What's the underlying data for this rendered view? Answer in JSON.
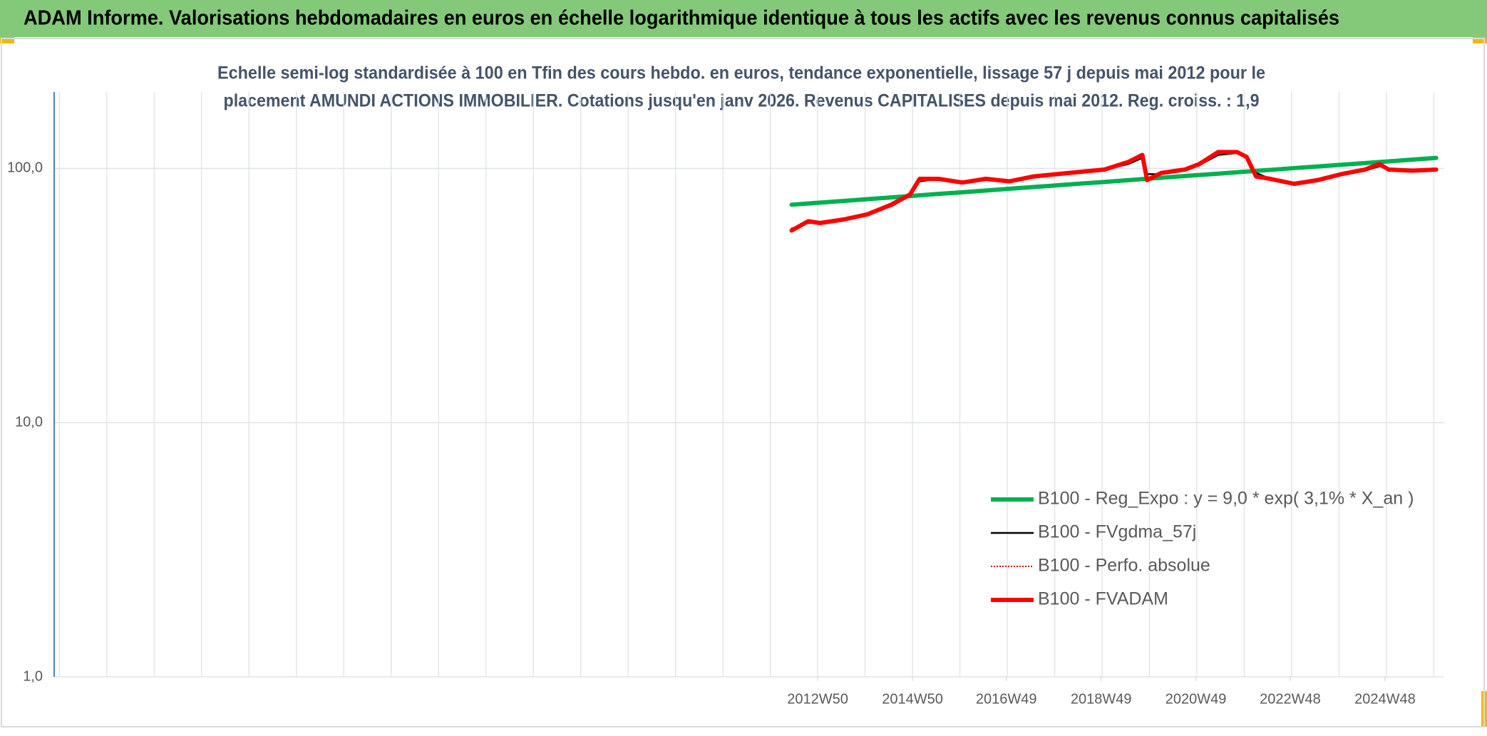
{
  "chart_data": {
    "type": "line",
    "header": "ADAM Informe. Valorisations hebdomadaires en euros en échelle logarithmique identique à tous les actifs avec les revenus connus capitalisés",
    "title": [
      "Echelle semi-log standardisée à 100 en Tfin des cours hebdo. en euros, tendance exponentielle, lissage 57 j depuis mai 2012 pour le",
      "placement AMUNDI ACTIONS IMMOBILIER. Cotations jusqu'en janv 2026. Revenus CAPITALISES depuis mai 2012. Reg. croiss. : 1,9"
    ],
    "log_scale": true,
    "grid": true,
    "legend_position": "lower right",
    "xlim": [
      1996.84,
      2026.17
    ],
    "xticks": [
      {
        "value": 2012.95,
        "label": "2012W50"
      },
      {
        "value": 2014.95,
        "label": "2014W50"
      },
      {
        "value": 2016.93,
        "label": "2016W49"
      },
      {
        "value": 2018.93,
        "label": "2018W49"
      },
      {
        "value": 2020.93,
        "label": "2020W49"
      },
      {
        "value": 2022.92,
        "label": "2022W48"
      },
      {
        "value": 2024.92,
        "label": "2024W48"
      }
    ],
    "ylim": [
      1,
      200
    ],
    "yticks": [
      {
        "value": 1,
        "label": "1,0"
      },
      {
        "value": 10,
        "label": "10,0"
      },
      {
        "value": 100,
        "label": "100,0"
      }
    ],
    "x": [
      2012.4,
      2012.75,
      2013,
      2013.5,
      2014,
      2014.5,
      2014.9,
      2015.1,
      2015.5,
      2016,
      2016.5,
      2017,
      2017.5,
      2018,
      2018.5,
      2019,
      2019.5,
      2019.8,
      2019.9,
      2020.2,
      2020.7,
      2021,
      2021.4,
      2021.8,
      2022,
      2022.2,
      2022.5,
      2023,
      2023.5,
      2024,
      2024.5,
      2024.8,
      2025,
      2025.5,
      2026
    ],
    "series": [
      {
        "name": "B100 - Reg_Expo : y = 9,0 * exp( 3,1% *  X_an )",
        "color": "#00b050",
        "style": "thick",
        "values": [
          72.0,
          72.8,
          73.4,
          74.5,
          75.7,
          76.9,
          77.9,
          78.4,
          79.4,
          80.6,
          81.9,
          83.2,
          84.5,
          85.8,
          87.2,
          88.5,
          89.9,
          90.8,
          91.1,
          91.9,
          93.4,
          94.2,
          95.4,
          96.6,
          97.2,
          97.8,
          98.7,
          100.3,
          101.8,
          103.4,
          105.0,
          106.0,
          106.6,
          108.3,
          110.0
        ]
      },
      {
        "name": "B100 - FVgdma_57j",
        "color": "#000000",
        "style": "thin",
        "values": [
          58,
          61,
          61,
          63,
          66,
          71,
          78,
          89,
          91,
          89,
          90,
          90,
          92,
          95,
          96,
          99,
          104,
          110,
          95,
          95,
          99,
          103,
          113,
          115,
          110,
          96,
          91,
          88,
          89,
          94,
          98,
          102,
          100,
          98,
          99
        ]
      },
      {
        "name": "B100 - Perfo. absolue",
        "color": "#c00000",
        "style": "dotted",
        "values": [
          57,
          62,
          61,
          63,
          66,
          72,
          79,
          91,
          91,
          88,
          91,
          89,
          93,
          95,
          97,
          99,
          106,
          113,
          90,
          96,
          99,
          104,
          116,
          116,
          111,
          93,
          91,
          87,
          90,
          95,
          99,
          104,
          99,
          98,
          99
        ]
      },
      {
        "name": "B100 - FVADAM",
        "color": "#ff0000",
        "style": "thick",
        "values": [
          57,
          62,
          61,
          63,
          66,
          72,
          79,
          91,
          91,
          88,
          91,
          89,
          93,
          95,
          97,
          99,
          106,
          113,
          90,
          96,
          99,
          104,
          116,
          116,
          111,
          93,
          91,
          87,
          90,
          95,
          99,
          104,
          99,
          98,
          99
        ]
      }
    ]
  }
}
